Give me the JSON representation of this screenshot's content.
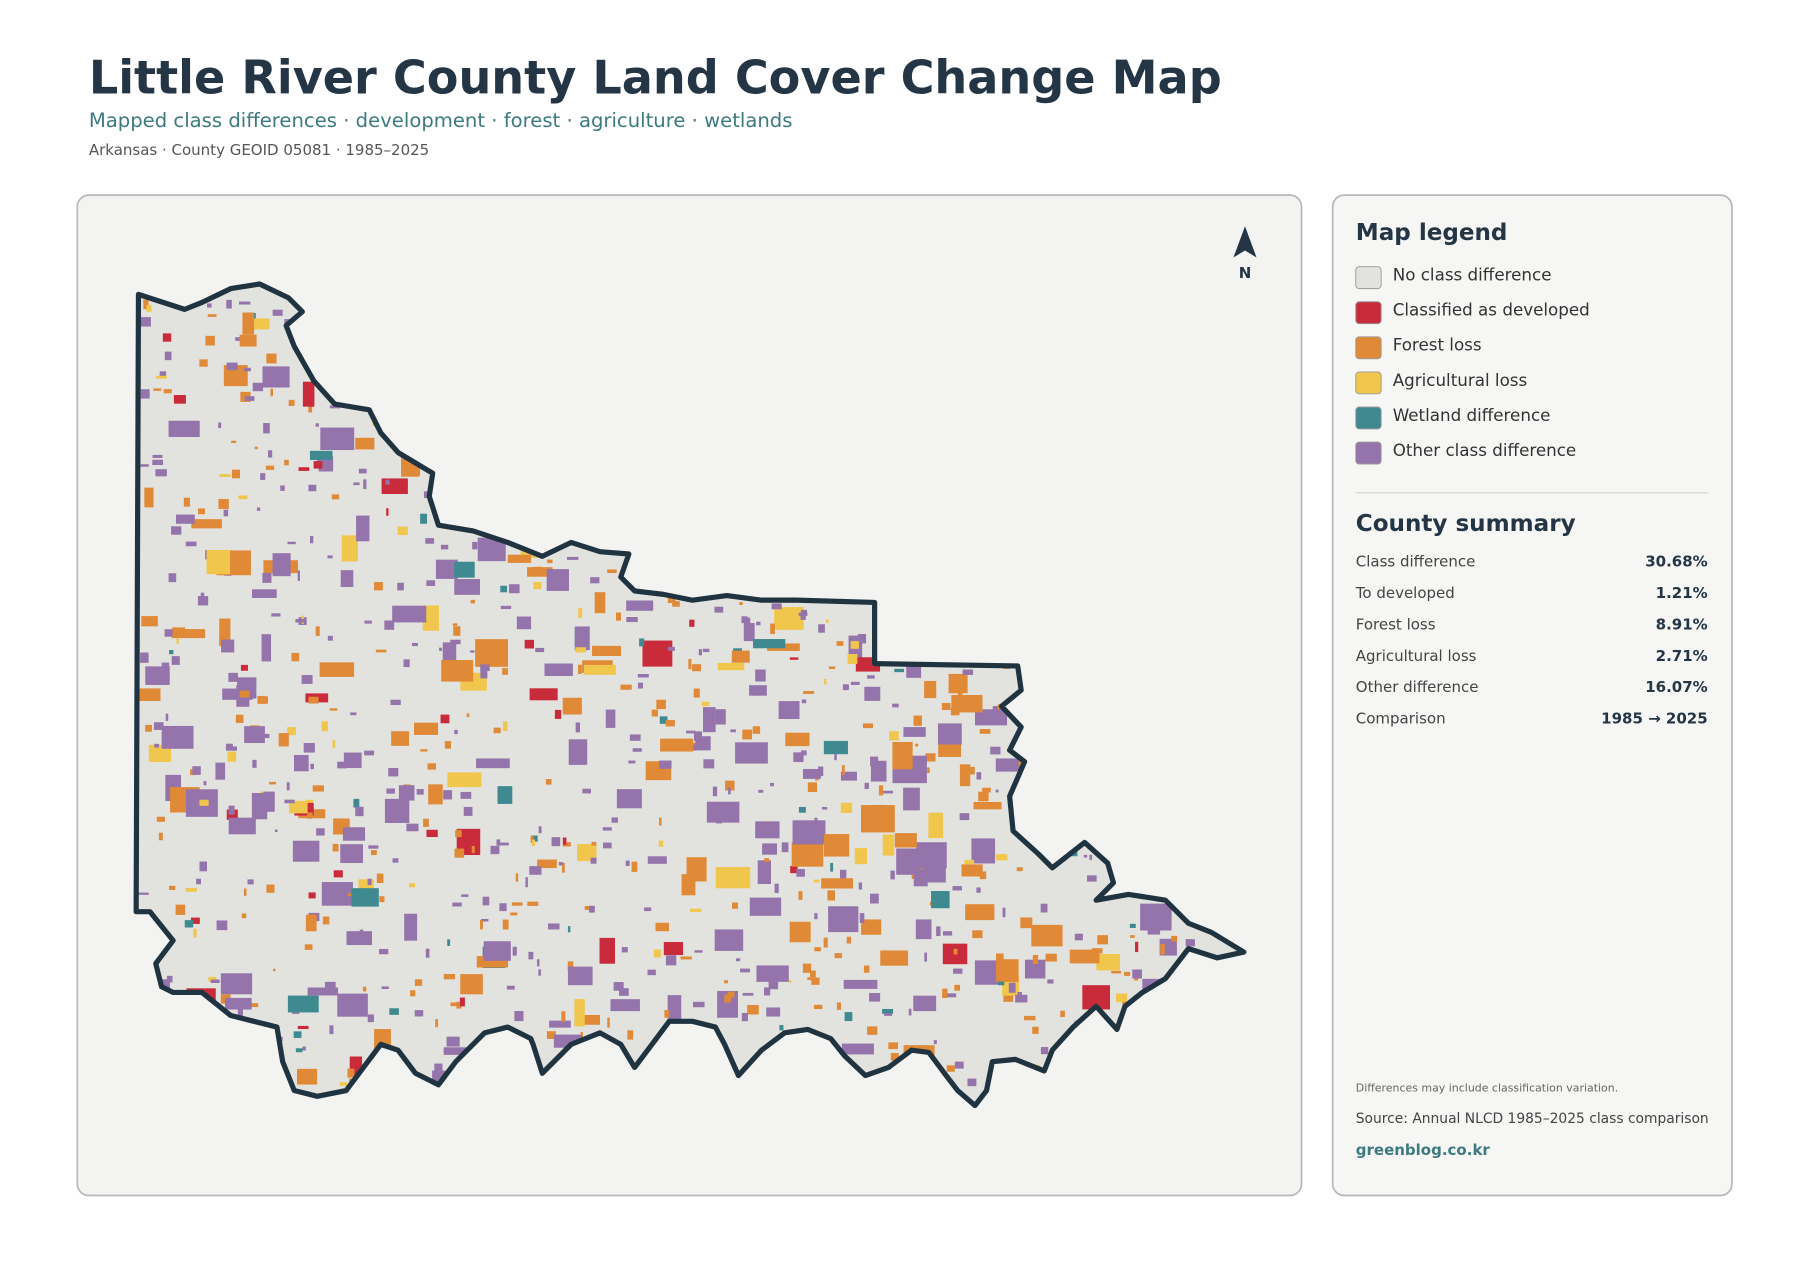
{
  "header": {
    "title": "Little River County Land Cover Change Map",
    "subtitle": "Mapped class differences · development · forest · agriculture · wetlands",
    "meta": "Arkansas · County GEOID 05081 · 1985–2025"
  },
  "map": {
    "north_label": "N"
  },
  "legend": {
    "title": "Map legend",
    "items": [
      {
        "label": "No class difference",
        "color": "#e2e3df"
      },
      {
        "label": "Classified as developed",
        "color": "#c92b3a"
      },
      {
        "label": "Forest loss",
        "color": "#e08a38"
      },
      {
        "label": "Agricultural loss",
        "color": "#f1c64c"
      },
      {
        "label": "Wetland difference",
        "color": "#3f8a90"
      },
      {
        "label": "Other class difference",
        "color": "#9474ab"
      }
    ]
  },
  "summary": {
    "title": "County summary",
    "rows": [
      [
        "Class difference",
        "30.68%"
      ],
      [
        "To developed",
        "1.21%"
      ],
      [
        "Forest loss",
        "8.91%"
      ],
      [
        "Agricultural loss",
        "2.71%"
      ],
      [
        "Other difference",
        "16.07%"
      ],
      [
        "Comparison",
        "1985 → 2025"
      ]
    ]
  },
  "footer": {
    "note": "Differences may include classification variation.",
    "source": "Source: Annual NLCD 1985–2025 class comparison",
    "credit": "greenblog.co.kr"
  }
}
